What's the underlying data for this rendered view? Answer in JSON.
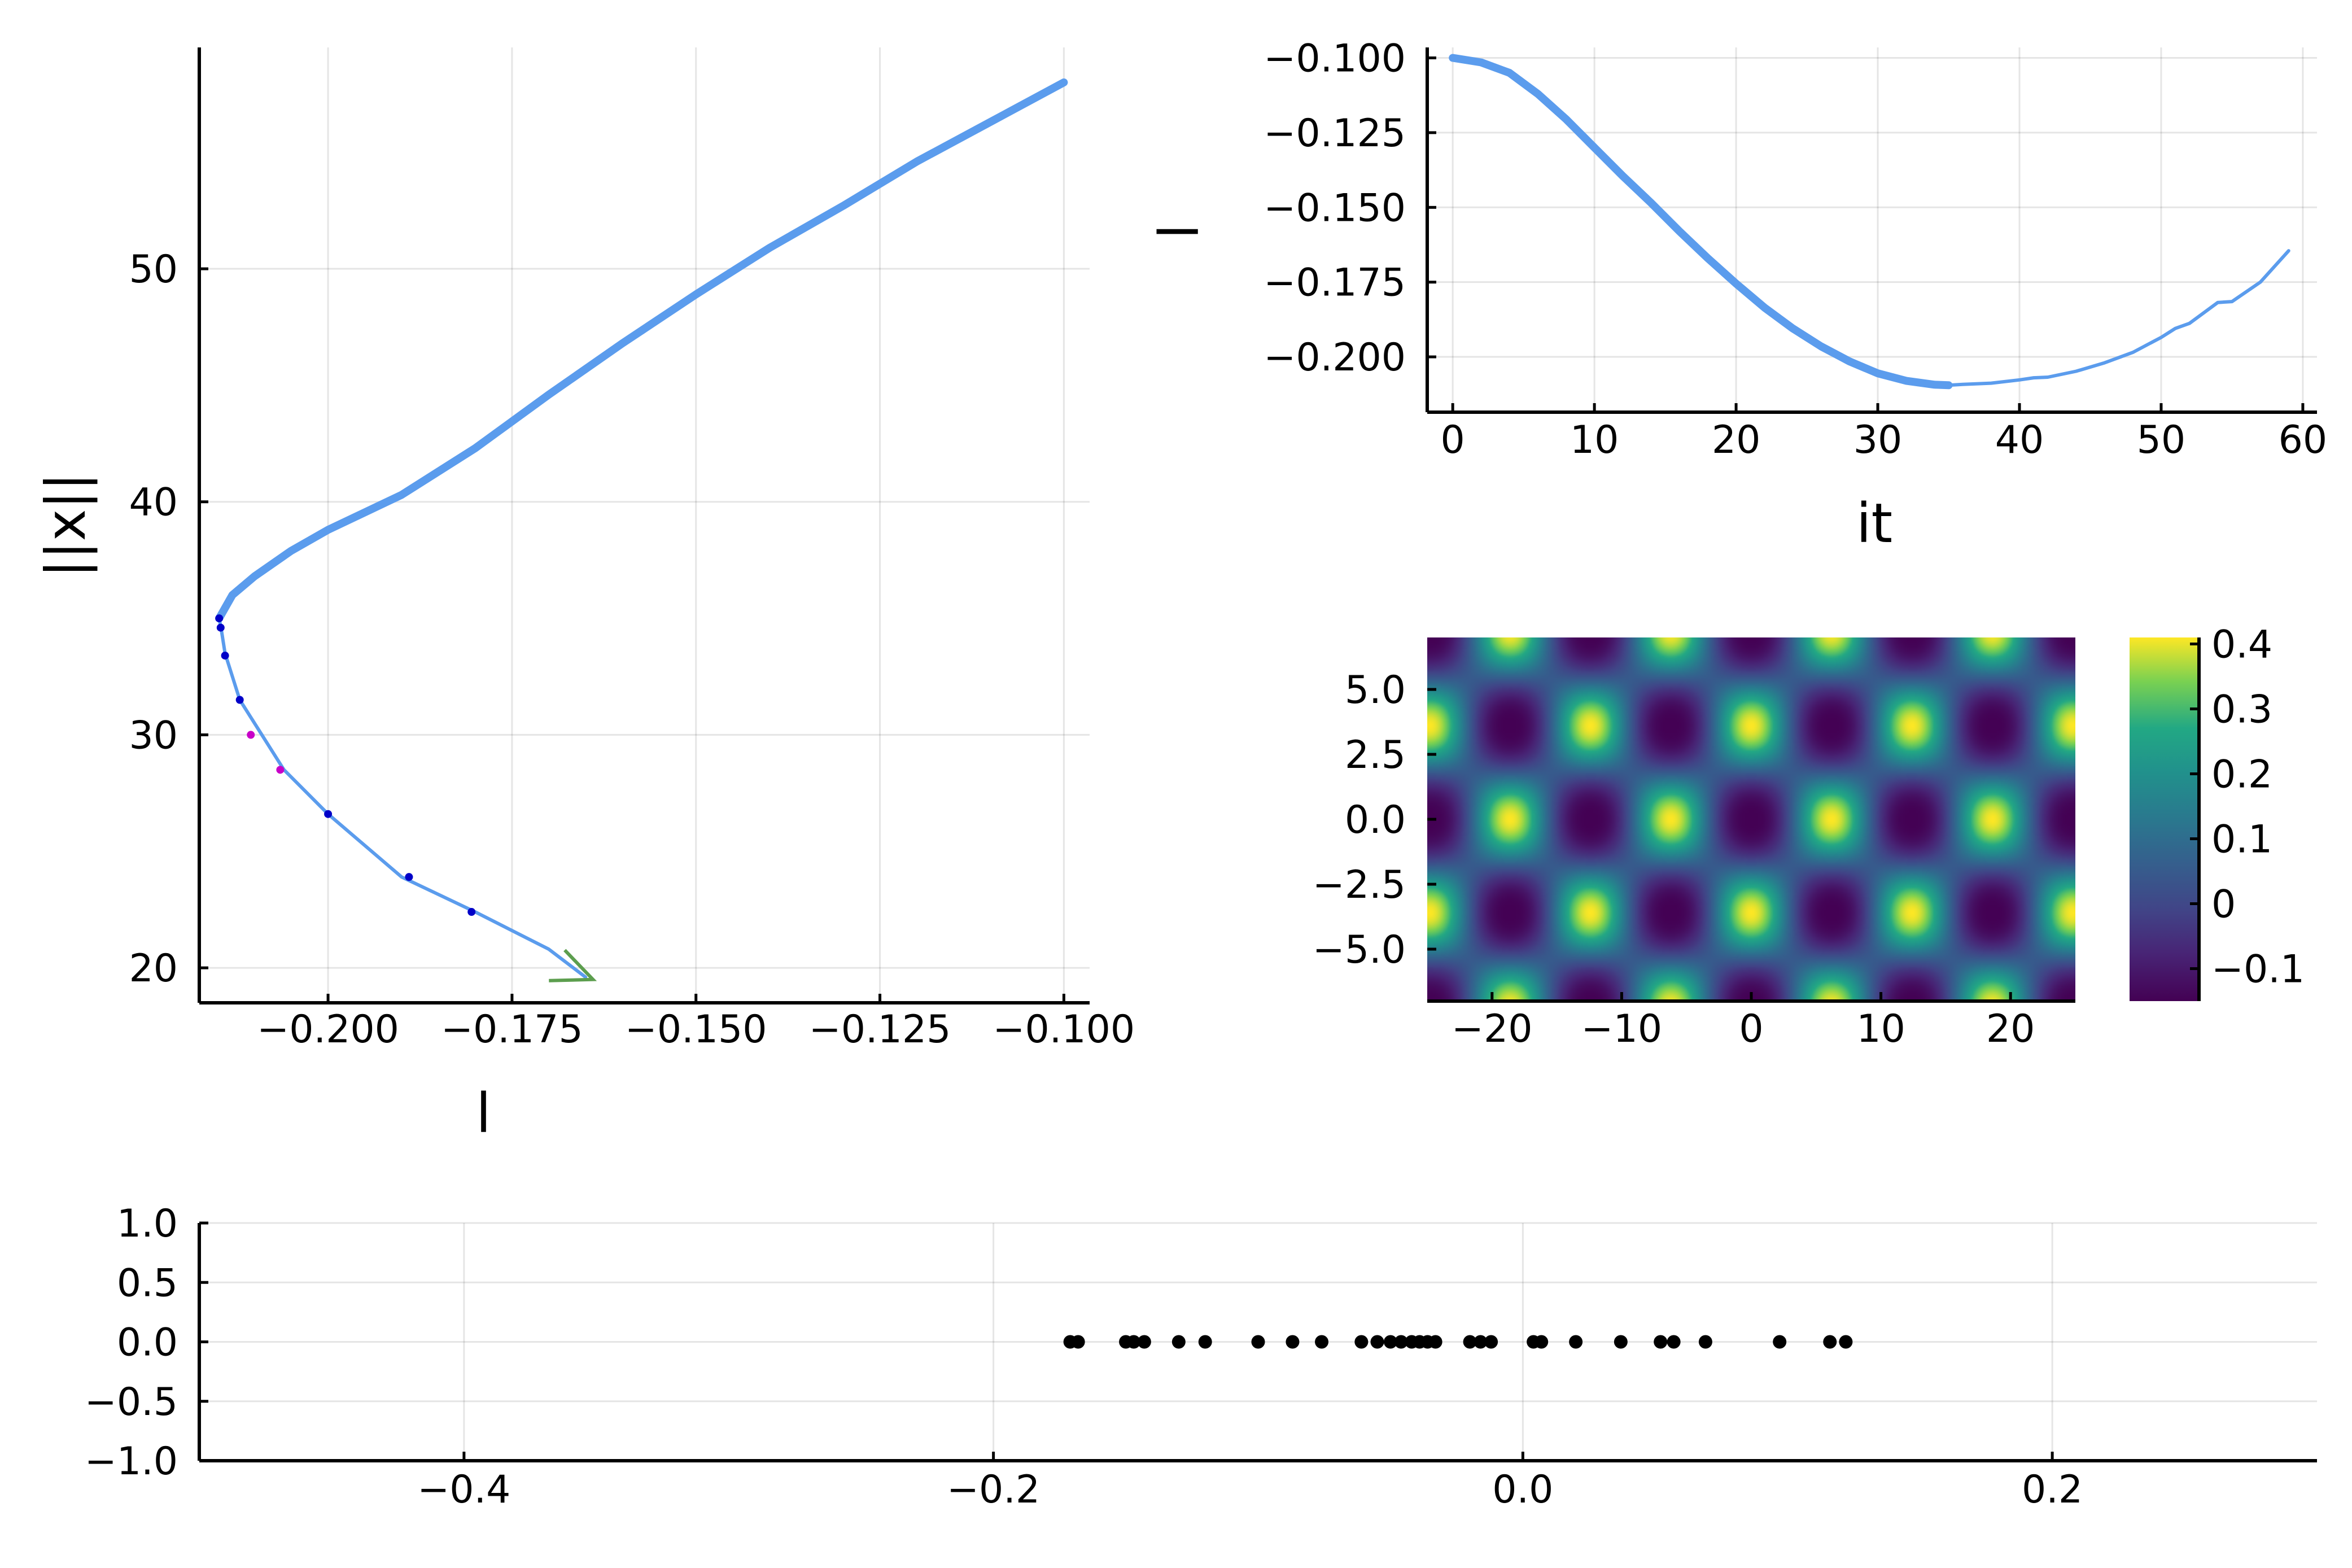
{
  "chart_data": [
    {
      "id": "branch",
      "type": "line",
      "xlabel": "l",
      "ylabel": "||x||",
      "xlim": [
        -0.2175,
        -0.0965
      ],
      "ylim": [
        18.5,
        59.5
      ],
      "xticks": [
        "−0.200",
        "−0.175",
        "−0.150",
        "−0.125",
        "−0.100"
      ],
      "xtick_values": [
        -0.2,
        -0.175,
        -0.15,
        -0.125,
        -0.1
      ],
      "yticks": [
        "20",
        "30",
        "40",
        "50"
      ],
      "ytick_values": [
        20,
        30,
        40,
        50
      ],
      "grid": true,
      "series": [
        {
          "style": "thick",
          "color": "#5b9ced",
          "points": [
            [
              -0.1,
              58.0
            ],
            [
              -0.11,
              56.3
            ],
            [
              -0.12,
              54.6
            ],
            [
              -0.13,
              52.7
            ],
            [
              -0.14,
              50.9
            ],
            [
              -0.15,
              48.9
            ],
            [
              -0.16,
              46.8
            ],
            [
              -0.17,
              44.6
            ],
            [
              -0.18,
              42.3
            ],
            [
              -0.19,
              40.3
            ],
            [
              -0.2,
              38.8
            ],
            [
              -0.205,
              37.9
            ],
            [
              -0.21,
              36.8
            ],
            [
              -0.213,
              36.0
            ],
            [
              -0.2148,
              35.0
            ]
          ]
        },
        {
          "style": "thin",
          "color": "#5b9ced",
          "points": [
            [
              -0.2148,
              35.0
            ],
            [
              -0.2145,
              34.5
            ],
            [
              -0.214,
              33.5
            ],
            [
              -0.212,
              31.5
            ],
            [
              -0.209,
              30.0
            ],
            [
              -0.206,
              28.5
            ],
            [
              -0.2,
              26.6
            ],
            [
              -0.19,
              23.9
            ],
            [
              -0.18,
              22.4
            ],
            [
              -0.17,
              20.8
            ],
            [
              -0.165,
              19.6
            ]
          ]
        }
      ],
      "markers": [
        {
          "x": -0.2148,
          "y": 35.0,
          "color": "#0000c8"
        },
        {
          "x": -0.2146,
          "y": 34.6,
          "color": "#0000c8"
        },
        {
          "x": -0.214,
          "y": 33.4,
          "color": "#0000c8"
        },
        {
          "x": -0.212,
          "y": 31.5,
          "color": "#0000c8"
        },
        {
          "x": -0.2105,
          "y": 30.0,
          "color": "#c800c8"
        },
        {
          "x": -0.2065,
          "y": 28.5,
          "color": "#c800c8"
        },
        {
          "x": -0.2,
          "y": 26.6,
          "color": "#0000c8"
        },
        {
          "x": -0.189,
          "y": 23.9,
          "color": "#0000c8"
        },
        {
          "x": -0.1805,
          "y": 22.4,
          "color": "#0000c8"
        }
      ],
      "arrow": {
        "from": [
          -0.168,
          20.2
        ],
        "to": [
          -0.164,
          19.5
        ],
        "color": "#5c9e4e"
      }
    },
    {
      "id": "iterations",
      "type": "line",
      "xlabel": "it",
      "ylabel": "l",
      "xlim": [
        -1.8,
        61.0
      ],
      "ylim": [
        -0.2185,
        -0.0965
      ],
      "xticks": [
        "0",
        "10",
        "20",
        "30",
        "40",
        "50",
        "60"
      ],
      "xtick_values": [
        0,
        10,
        20,
        30,
        40,
        50,
        60
      ],
      "yticks": [
        "−0.100",
        "−0.125",
        "−0.150",
        "−0.175",
        "−0.200"
      ],
      "ytick_values": [
        -0.1,
        -0.125,
        -0.15,
        -0.175,
        -0.2
      ],
      "grid": true,
      "series": [
        {
          "style": "thick",
          "color": "#5b9ced",
          "points": [
            [
              0,
              -0.1
            ],
            [
              2,
              -0.1015
            ],
            [
              4,
              -0.105
            ],
            [
              6,
              -0.112
            ],
            [
              8,
              -0.1205
            ],
            [
              10,
              -0.13
            ],
            [
              12,
              -0.1395
            ],
            [
              14,
              -0.1485
            ],
            [
              16,
              -0.158
            ],
            [
              18,
              -0.167
            ],
            [
              20,
              -0.1755
            ],
            [
              22,
              -0.1835
            ],
            [
              24,
              -0.1905
            ],
            [
              26,
              -0.1965
            ],
            [
              28,
              -0.2015
            ],
            [
              30,
              -0.2055
            ],
            [
              32,
              -0.208
            ],
            [
              34,
              -0.2093
            ],
            [
              35,
              -0.2095
            ]
          ]
        },
        {
          "style": "thin",
          "color": "#5b9ced",
          "points": [
            [
              35,
              -0.2095
            ],
            [
              36,
              -0.2092
            ],
            [
              38,
              -0.2088
            ],
            [
              40,
              -0.2077
            ],
            [
              41,
              -0.207
            ],
            [
              42,
              -0.2068
            ],
            [
              44,
              -0.2048
            ],
            [
              46,
              -0.202
            ],
            [
              48,
              -0.1985
            ],
            [
              50,
              -0.1935
            ],
            [
              51,
              -0.1905
            ],
            [
              52,
              -0.1888
            ],
            [
              54,
              -0.1818
            ],
            [
              55,
              -0.1815
            ],
            [
              57,
              -0.175
            ],
            [
              59,
              -0.1645
            ]
          ]
        }
      ]
    },
    {
      "id": "pattern",
      "type": "heatmap",
      "xlim": [
        -25,
        25
      ],
      "ylim": [
        -7,
        7
      ],
      "xticks": [
        "−20",
        "−10",
        "0",
        "10",
        "20"
      ],
      "xtick_values": [
        -20,
        -10,
        0,
        10,
        20
      ],
      "yticks": [
        "5.0",
        "2.5",
        "0.0",
        "−2.5",
        "−5.0"
      ],
      "ytick_values": [
        5,
        2.5,
        0,
        -2.5,
        -5
      ],
      "colorbar": {
        "min": -0.15,
        "max": 0.41,
        "ticks": [
          "0.4",
          "0.3",
          "0.2",
          "0.1",
          "0",
          "−0.1"
        ],
        "tick_values": [
          0.4,
          0.3,
          0.2,
          0.1,
          0,
          -0.1
        ],
        "colormap": "viridis"
      }
    },
    {
      "id": "eigenvalues",
      "type": "scatter",
      "xlim": [
        -0.5,
        0.3
      ],
      "ylim": [
        -1.0,
        1.0
      ],
      "xticks": [
        "−0.4",
        "−0.2",
        "0.0",
        "0.2"
      ],
      "xtick_values": [
        -0.4,
        -0.2,
        0.0,
        0.2
      ],
      "yticks": [
        "1.0",
        "0.5",
        "0.0",
        "−0.5",
        "−1.0"
      ],
      "ytick_values": [
        1.0,
        0.5,
        0.0,
        -0.5,
        -1.0
      ],
      "grid": true,
      "color": "#000000",
      "x": [
        -0.171,
        -0.168,
        -0.15,
        -0.147,
        -0.143,
        -0.13,
        -0.12,
        -0.1,
        -0.087,
        -0.076,
        -0.061,
        -0.055,
        -0.05,
        -0.046,
        -0.042,
        -0.039,
        -0.036,
        -0.033,
        -0.02,
        -0.016,
        -0.012,
        0.004,
        0.007,
        0.02,
        0.037,
        0.052,
        0.057,
        0.069,
        0.097,
        0.116,
        0.122
      ],
      "y": [
        0,
        0,
        0,
        0,
        0,
        0,
        0,
        0,
        0,
        0,
        0,
        0,
        0,
        0,
        0,
        0,
        0,
        0,
        0,
        0,
        0,
        0,
        0,
        0,
        0,
        0,
        0,
        0,
        0,
        0,
        0
      ]
    }
  ]
}
